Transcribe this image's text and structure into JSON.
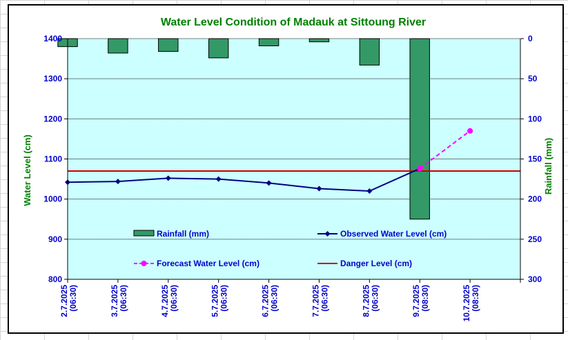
{
  "chart_data": {
    "type": "bar",
    "title": "Water Level Condition of Madauk at Sittoung River",
    "ylabel": "Water Level (cm)",
    "y2label": "Rainfall (mm)",
    "ylim": [
      800,
      1400
    ],
    "y2lim": [
      0,
      300
    ],
    "y2_inverted": true,
    "yticks": [
      "1400",
      "1300",
      "1200",
      "1100",
      "1000",
      "900",
      "800"
    ],
    "y2ticks": [
      "0",
      "50",
      "100",
      "150",
      "200",
      "250",
      "300"
    ],
    "categories": [
      [
        "2.7.2025",
        "(06:30)"
      ],
      [
        "3.7.2025",
        "(06:30)"
      ],
      [
        "4.7.2025",
        "(06:30)"
      ],
      [
        "5.7.2025",
        "(06:30)"
      ],
      [
        "6.7.2025",
        "(06:30)"
      ],
      [
        "7.7.2025",
        "(06:30)"
      ],
      [
        "8.7.2025",
        "(06:30)"
      ],
      [
        "9.7.2025",
        "(08:30)"
      ],
      [
        "10.7.2025",
        "(08:30)"
      ]
    ],
    "grid": true,
    "series": [
      {
        "name": "Rainfall (mm)",
        "type": "bar",
        "axis": "right",
        "color": "#339966",
        "values": [
          10,
          18,
          16,
          24,
          9,
          4,
          33,
          225,
          null
        ]
      },
      {
        "name": "Observed Water Level (cm)",
        "type": "line",
        "axis": "left",
        "color": "#000080",
        "values": [
          1042,
          1044,
          1052,
          1050,
          1040,
          1026,
          1020,
          1076,
          null
        ]
      },
      {
        "name": "Forecast Water Level (cm)",
        "type": "line",
        "axis": "left",
        "color": "#ff00ff",
        "dashed": true,
        "values": [
          null,
          null,
          null,
          null,
          null,
          null,
          null,
          1076,
          1170
        ]
      },
      {
        "name": "Danger Level (cm)",
        "type": "hline",
        "axis": "left",
        "color": "#cc0000",
        "value": 1070
      }
    ],
    "legend_position": "inside-bottom",
    "colors": {
      "plot_background": "#ccffff",
      "title": "#008000",
      "axis_title": "#008000",
      "tick_label": "#0000cc",
      "legend_text": "#0000cc"
    }
  }
}
